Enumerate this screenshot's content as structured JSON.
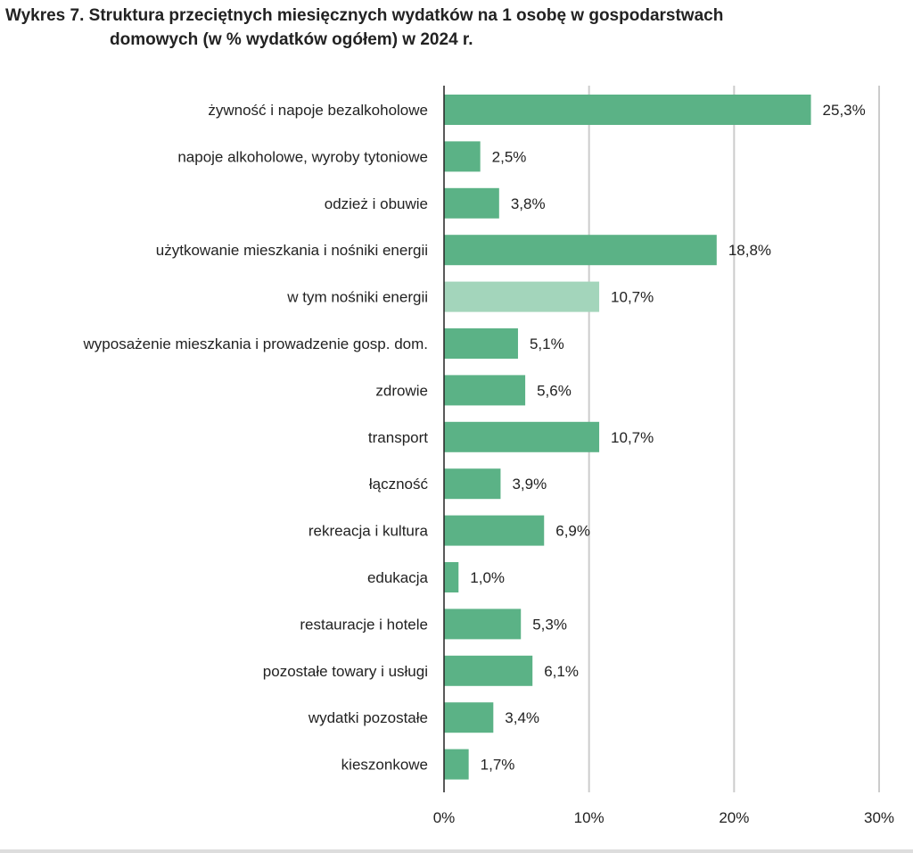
{
  "chart_data": {
    "type": "bar",
    "orientation": "horizontal",
    "title_prefix": "Wykres 7.",
    "title_line1": "Struktura przeciętnych miesięcznych wydatków na 1 osobę w gospodarstwach",
    "title_line2": "domowych (w % wydatków ogółem) w 2024 r.",
    "categories": [
      "żywność i napoje bezalkoholowe",
      "napoje alkoholowe, wyroby tytoniowe",
      "odzież i obuwie",
      "użytkowanie mieszkania i nośniki energii",
      "w tym nośniki energii",
      "wyposażenie mieszkania i prowadzenie gosp. dom.",
      "zdrowie",
      "transport",
      "łączność",
      "rekreacja i kultura",
      "edukacja",
      "restauracje i hotele",
      "pozostałe towary i usługi",
      "wydatki pozostałe",
      "kieszonkowe"
    ],
    "values": [
      25.3,
      2.5,
      3.8,
      18.8,
      10.7,
      5.1,
      5.6,
      10.7,
      3.9,
      6.9,
      1.0,
      5.3,
      6.1,
      3.4,
      1.7
    ],
    "value_labels": [
      "25,3%",
      "2,5%",
      "3,8%",
      "18,8%",
      "10,7%",
      "5,1%",
      "5,6%",
      "10,7%",
      "3,9%",
      "6,9%",
      "1,0%",
      "5,3%",
      "6,1%",
      "3,4%",
      "1,7%"
    ],
    "highlight_light": [
      false,
      false,
      false,
      false,
      true,
      false,
      false,
      false,
      false,
      false,
      false,
      false,
      false,
      false,
      false
    ],
    "xlim": [
      0,
      30
    ],
    "xticks": [
      0,
      10,
      20,
      30
    ],
    "xtick_labels": [
      "0%",
      "10%",
      "20%",
      "30%"
    ],
    "grid": "vertical",
    "colors": {
      "bar": "#5bb286",
      "bar_light": "#a3d5bb",
      "grid": "#cccccc",
      "axis": "#222222"
    }
  }
}
